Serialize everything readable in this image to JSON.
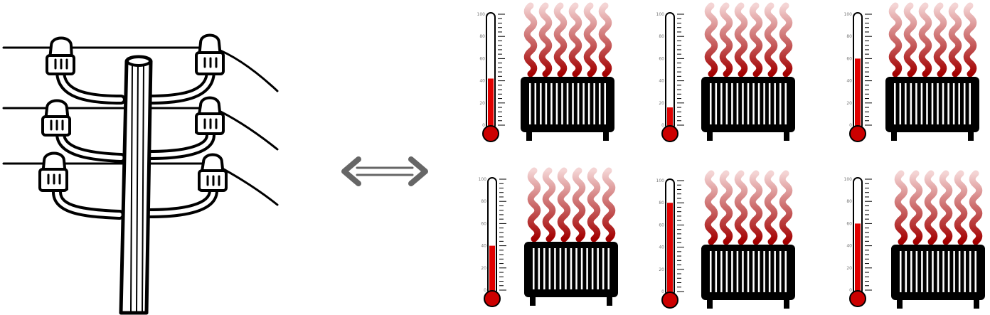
{
  "colors": {
    "ink": "#000000",
    "mercury": "#e00000",
    "bulb": "#cc0000",
    "heat_dark": "#a30000",
    "heat_light": "#f4d4d4",
    "arrow": "#666666"
  },
  "pole": {
    "icon": "utility-pole-icon",
    "insulators": 6,
    "wires": 3
  },
  "arrow": {
    "icon": "double-headed-arrow-icon"
  },
  "thermometer_scale": {
    "min": 0,
    "max": 100,
    "ticks": [
      "0",
      "20",
      "40",
      "60",
      "80",
      "100"
    ]
  },
  "heaters": [
    {
      "level": 42
    },
    {
      "level": 16
    },
    {
      "level": 60
    },
    {
      "level": 40
    },
    {
      "level": 80
    },
    {
      "level": 60
    }
  ]
}
